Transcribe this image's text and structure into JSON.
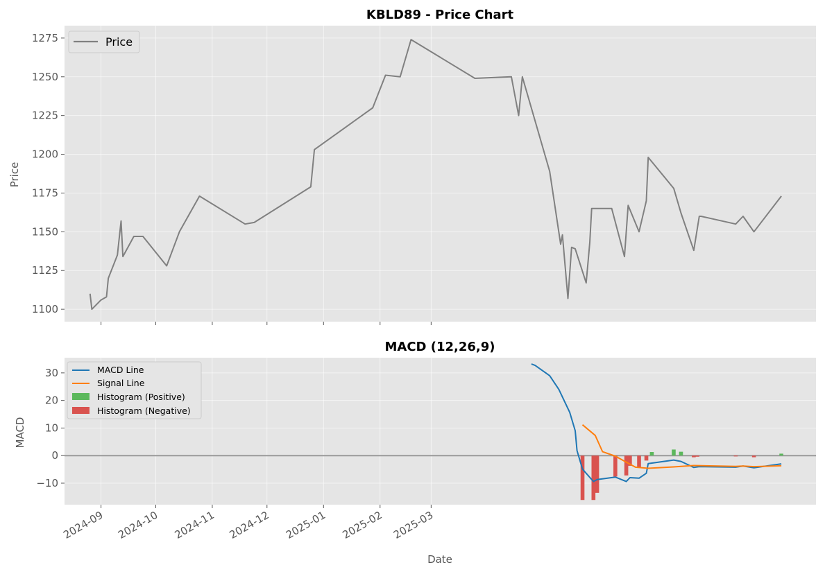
{
  "chart_data": [
    {
      "type": "line",
      "title": "KBLD89 - Price Chart",
      "xlabel": "",
      "ylabel": "Price",
      "ylim": [
        1092,
        1283
      ],
      "yticks": [
        1100,
        1125,
        1150,
        1175,
        1200,
        1225,
        1250,
        1275
      ],
      "grid": true,
      "legend": "top-left",
      "series": [
        {
          "name": "Price",
          "color": "#808080",
          "points": [
            [
              "2024-08-26",
              1110
            ],
            [
              "2024-08-27",
              1100
            ],
            [
              "2024-09-01",
              1106
            ],
            [
              "2024-09-04",
              1108
            ],
            [
              "2024-09-05",
              1120
            ],
            [
              "2024-09-10",
              1135
            ],
            [
              "2024-09-12",
              1157
            ],
            [
              "2024-09-13",
              1134
            ],
            [
              "2024-09-19",
              1147
            ],
            [
              "2024-09-24",
              1147
            ],
            [
              "2024-10-07",
              1128
            ],
            [
              "2024-10-14",
              1150
            ],
            [
              "2024-10-25",
              1173
            ],
            [
              "2024-11-19",
              1155
            ],
            [
              "2024-11-24",
              1156
            ],
            [
              "2024-12-25",
              1179
            ],
            [
              "2024-12-27",
              1203
            ],
            [
              "2025-01-28",
              1230
            ],
            [
              "2025-02-04",
              1251
            ],
            [
              "2025-02-12",
              1250
            ],
            [
              "2025-02-18",
              1274
            ],
            [
              "2025-03-25",
              1249
            ],
            [
              "2025-04-14",
              1250
            ],
            [
              "2025-04-18",
              1225
            ],
            [
              "2025-04-20",
              1250
            ],
            [
              "2025-05-05",
              1189
            ],
            [
              "2025-05-11",
              1142
            ],
            [
              "2025-05-12",
              1148
            ],
            [
              "2025-05-15",
              1107
            ],
            [
              "2025-05-17",
              1140
            ],
            [
              "2025-05-19",
              1139
            ],
            [
              "2025-05-25",
              1117
            ],
            [
              "2025-05-27",
              1143
            ],
            [
              "2025-05-28",
              1165
            ],
            [
              "2025-06-08",
              1165
            ],
            [
              "2025-06-15",
              1134
            ],
            [
              "2025-06-17",
              1167
            ],
            [
              "2025-06-23",
              1150
            ],
            [
              "2025-06-27",
              1170
            ],
            [
              "2025-06-28",
              1198
            ],
            [
              "2025-07-12",
              1178
            ],
            [
              "2025-07-16",
              1162
            ],
            [
              "2025-07-23",
              1138
            ],
            [
              "2025-07-26",
              1160
            ],
            [
              "2025-07-27",
              1160
            ],
            [
              "2025-08-15",
              1155
            ],
            [
              "2025-08-19",
              1160
            ],
            [
              "2025-08-25",
              1150
            ],
            [
              "2025-09-09",
              1173
            ]
          ]
        }
      ]
    },
    {
      "type": "line",
      "title": "MACD (12,26,9)",
      "xlabel": "Date",
      "ylabel": "MACD",
      "ylim": [
        -17.8,
        35.5
      ],
      "yticks": [
        -10,
        0,
        10,
        20,
        30
      ],
      "xticks": [
        "2024-09",
        "2024-10",
        "2024-11",
        "2024-12",
        "2025-01",
        "2025-02",
        "2025-03"
      ],
      "grid": true,
      "legend": "top-left",
      "zero_line": 0,
      "series": [
        {
          "name": "MACD Line",
          "color": "#1f77b4",
          "points": [
            [
              "2025-04-25",
              33.2
            ],
            [
              "2025-04-27",
              32.7
            ],
            [
              "2025-05-05",
              29.0
            ],
            [
              "2025-05-10",
              24.0
            ],
            [
              "2025-05-16",
              15.7
            ],
            [
              "2025-05-19",
              9.0
            ],
            [
              "2025-05-20",
              1.8
            ],
            [
              "2025-05-23",
              -4.9
            ],
            [
              "2025-05-29",
              -9.4
            ],
            [
              "2025-05-31",
              -8.7
            ],
            [
              "2025-06-10",
              -7.8
            ],
            [
              "2025-06-16",
              -9.4
            ],
            [
              "2025-06-18",
              -8.0
            ],
            [
              "2025-06-23",
              -8.2
            ],
            [
              "2025-06-27",
              -6.4
            ],
            [
              "2025-06-28",
              -2.9
            ],
            [
              "2025-07-12",
              -1.6
            ],
            [
              "2025-07-16",
              -2.1
            ],
            [
              "2025-07-23",
              -4.3
            ],
            [
              "2025-07-26",
              -4.0
            ],
            [
              "2025-08-15",
              -4.2
            ],
            [
              "2025-08-19",
              -3.8
            ],
            [
              "2025-08-25",
              -4.4
            ],
            [
              "2025-09-09",
              -3.0
            ]
          ]
        },
        {
          "name": "Signal Line",
          "color": "#ff7f0e",
          "points": [
            [
              "2025-05-23",
              11.2
            ],
            [
              "2025-05-30",
              7.3
            ],
            [
              "2025-06-03",
              1.4
            ],
            [
              "2025-06-10",
              -0.2
            ],
            [
              "2025-06-15",
              -2.0
            ],
            [
              "2025-06-21",
              -4.2
            ],
            [
              "2025-06-28",
              -4.6
            ],
            [
              "2025-07-12",
              -4.1
            ],
            [
              "2025-07-23",
              -3.6
            ],
            [
              "2025-08-15",
              -3.9
            ],
            [
              "2025-08-19",
              -3.8
            ],
            [
              "2025-08-25",
              -4.0
            ],
            [
              "2025-09-09",
              -3.7
            ]
          ]
        },
        {
          "name": "Histogram (Positive)",
          "color": "#5cb85c",
          "bars": [
            [
              "2025-06-30",
              1.3
            ],
            [
              "2025-07-12",
              2.2
            ],
            [
              "2025-07-16",
              1.4
            ],
            [
              "2025-09-09",
              0.7
            ]
          ]
        },
        {
          "name": "Histogram (Negative)",
          "color": "#d9534f",
          "bars": [
            [
              "2025-05-23",
              -16.1
            ],
            [
              "2025-05-29",
              -16.1
            ],
            [
              "2025-05-31",
              -13.5
            ],
            [
              "2025-06-10",
              -7.6
            ],
            [
              "2025-06-16",
              -7.2
            ],
            [
              "2025-06-18",
              -3.7
            ],
            [
              "2025-06-23",
              -4.2
            ],
            [
              "2025-06-27",
              -1.8
            ],
            [
              "2025-07-23",
              -0.6
            ],
            [
              "2025-07-25",
              -0.4
            ],
            [
              "2025-08-15",
              -0.3
            ],
            [
              "2025-08-25",
              -0.6
            ]
          ]
        }
      ]
    }
  ]
}
